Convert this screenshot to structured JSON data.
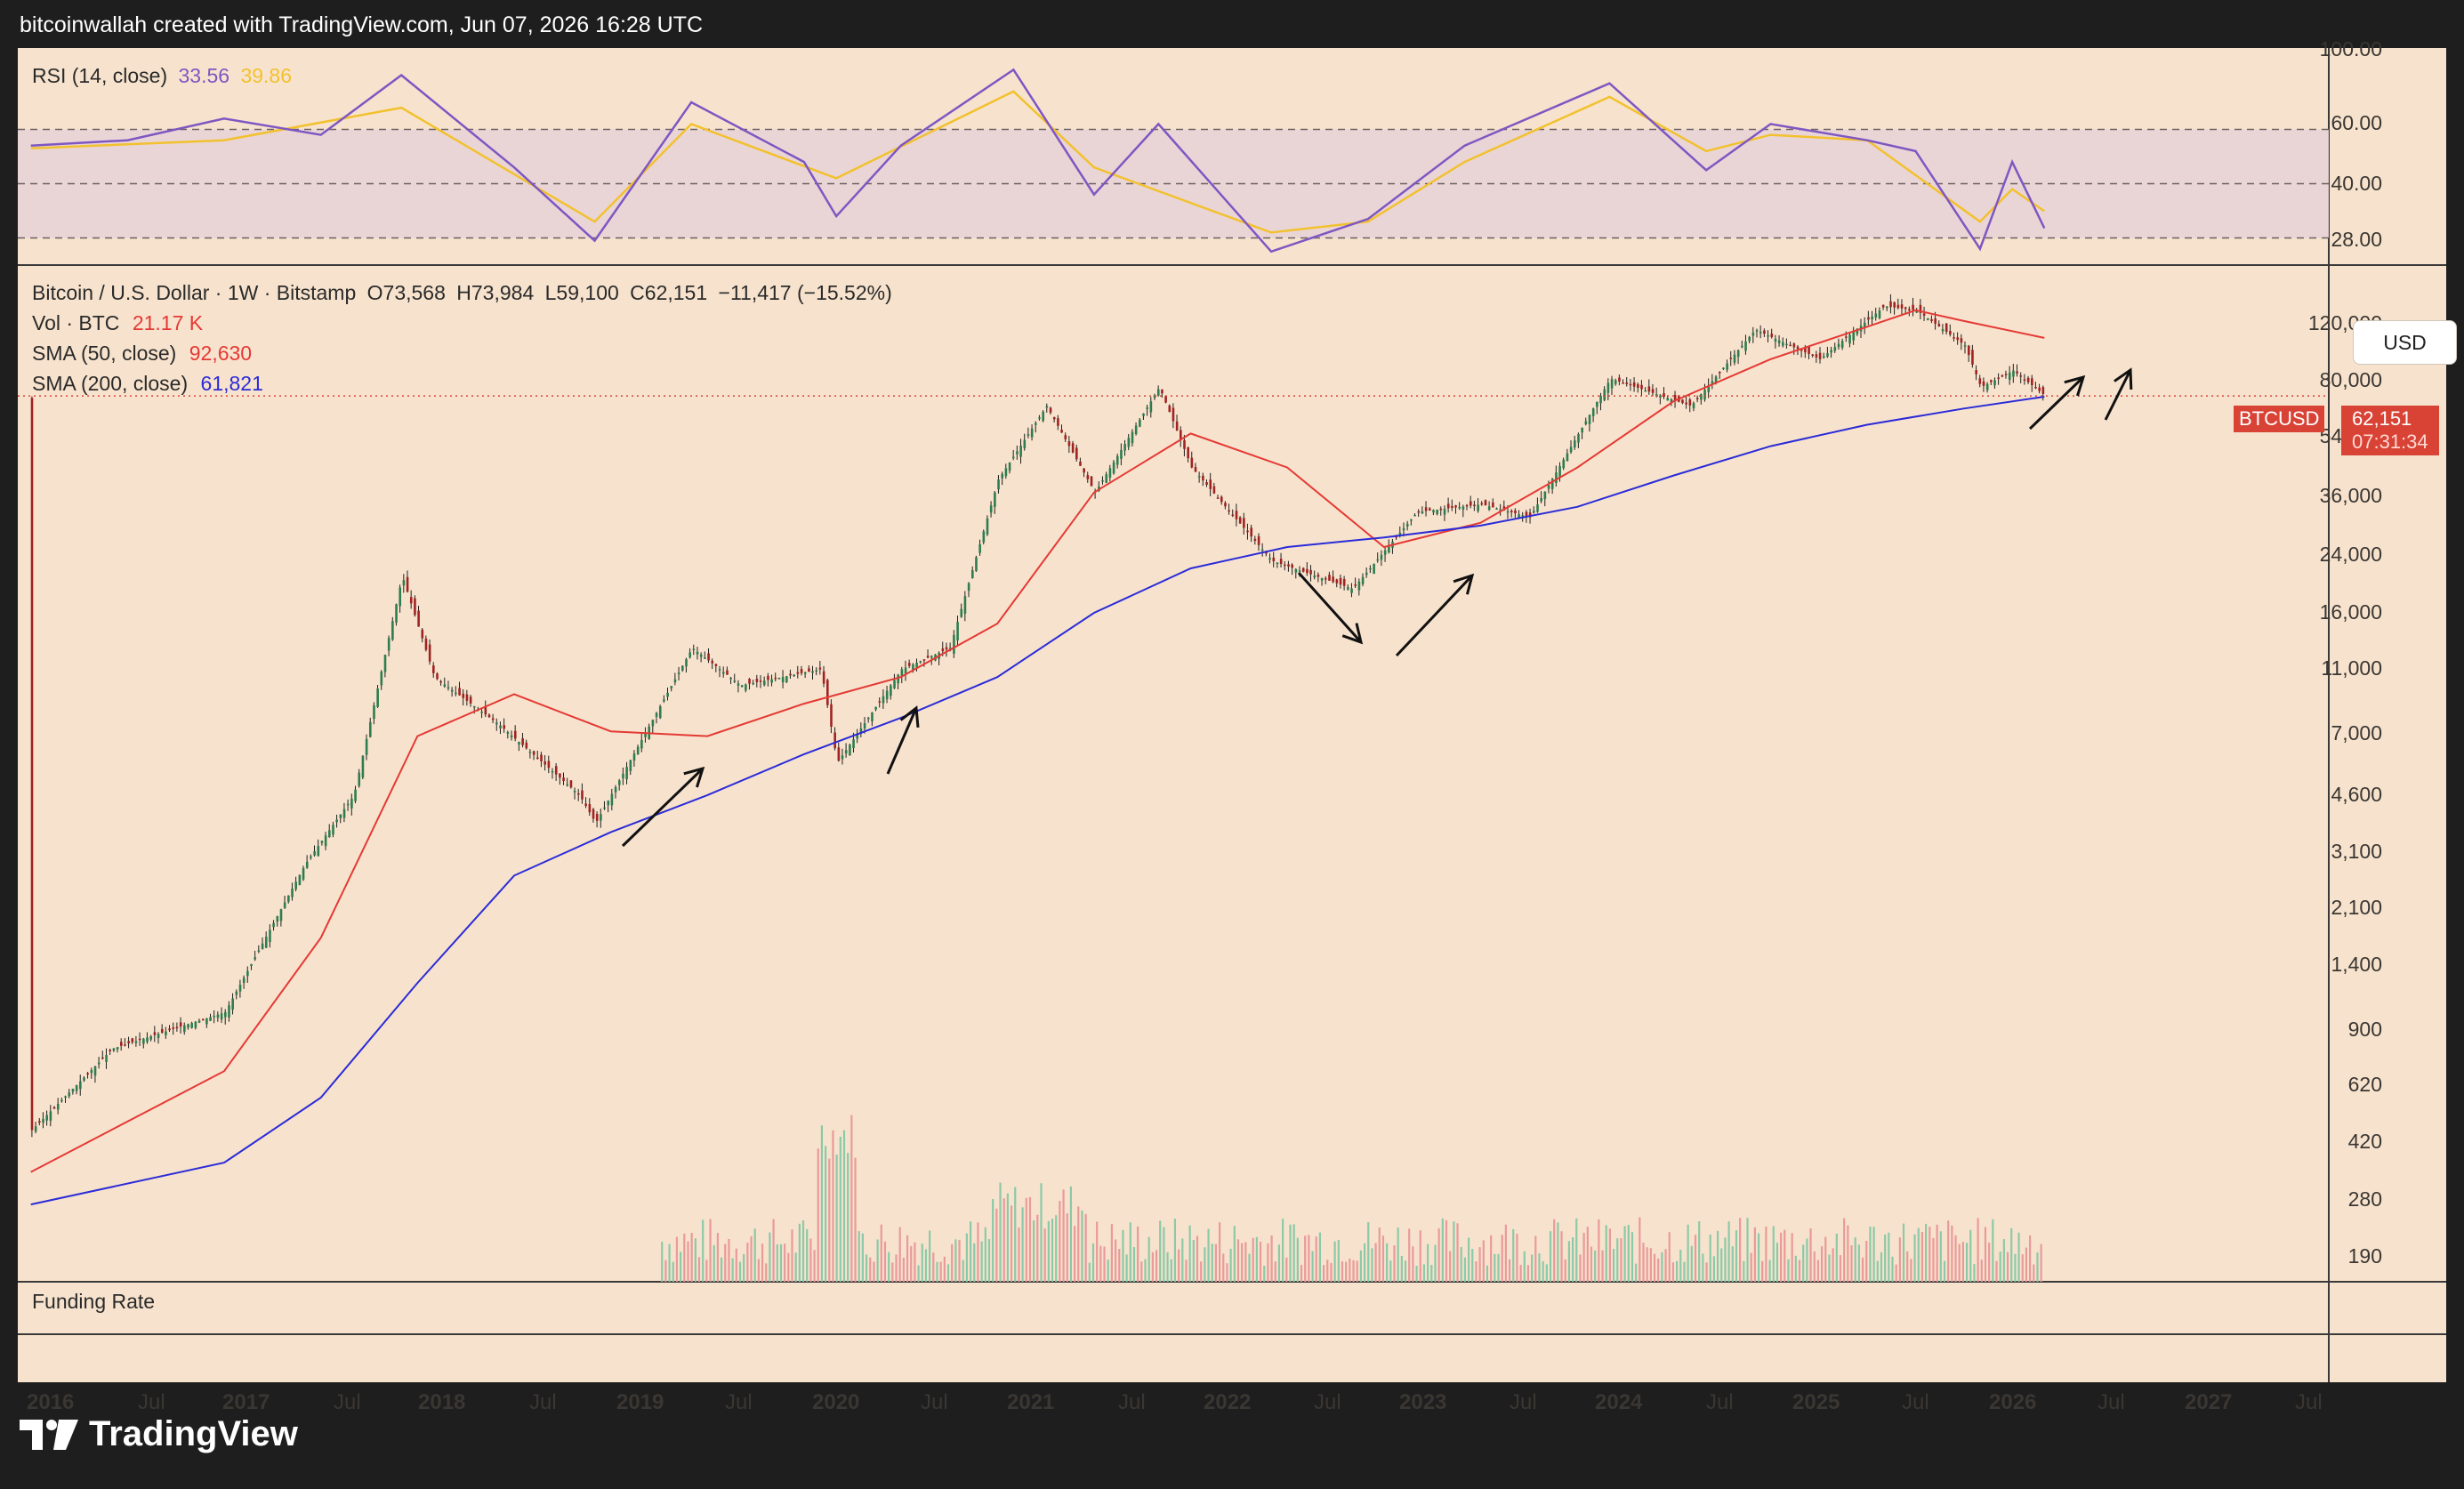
{
  "header": {
    "attribution": "bitcoinwallah created with TradingView.com, Jun 07, 2026 16:28 UTC"
  },
  "footer": {
    "brand": "TradingView"
  },
  "rsi_panel": {
    "title": "RSI (14, close)",
    "rsi_value": "33.56",
    "ma_value": "39.86",
    "axis_labels": [
      "100.00",
      "60.00",
      "40.00",
      "28.00"
    ]
  },
  "price_panel": {
    "symbol_line": "Bitcoin / U.S. Dollar · 1W · Bitstamp",
    "open": "O73,568",
    "high": "H73,984",
    "low": "L59,100",
    "close": "C62,151",
    "change": "−11,417 (−15.52%)",
    "vol_label": "Vol · BTC",
    "vol_value": "21.17 K",
    "sma50_label": "SMA (50, close)",
    "sma50_value": "92,630",
    "sma200_label": "SMA (200, close)",
    "sma200_value": "61,821",
    "currency_button": "USD",
    "price_tag": {
      "symbol": "BTCUSD",
      "price": "62,151",
      "countdown": "07:31:34"
    },
    "axis_labels": [
      "120,000",
      "80,000",
      "54,000",
      "36,000",
      "24,000",
      "16,000",
      "11,000",
      "7,000",
      "4,600",
      "3,100",
      "2,100",
      "1,400",
      "900",
      "620",
      "420",
      "280",
      "190"
    ]
  },
  "funding_panel": {
    "title": "Funding Rate"
  },
  "time_axis": {
    "labels": [
      "2016",
      "Jul",
      "2017",
      "Jul",
      "2018",
      "Jul",
      "2019",
      "Jul",
      "2020",
      "Jul",
      "2021",
      "Jul",
      "2022",
      "Jul",
      "2023",
      "Jul",
      "2024",
      "Jul",
      "2025",
      "Jul",
      "2026",
      "Jul",
      "2027",
      "Jul"
    ]
  },
  "colors": {
    "background": "#f7e3cd",
    "rsi_line": "#7e57c2",
    "rsi_ma": "#f2c12e",
    "sma50": "#e53935",
    "sma200": "#2b2bd8",
    "candle_up": "#2e7d4e",
    "candle_down": "#a02323",
    "price_tag": "#d84336"
  },
  "chart_data": [
    {
      "type": "line",
      "title": "RSI (14, close)",
      "ylim": [
        20,
        100
      ],
      "reference_lines": [
        70,
        50,
        30
      ],
      "series": [
        {
          "name": "RSI",
          "x": [
            "2016-01",
            "2016-07",
            "2017-01",
            "2017-07",
            "2017-12",
            "2018-07",
            "2018-12",
            "2019-06",
            "2020-01",
            "2020-03",
            "2020-07",
            "2021-02",
            "2021-07",
            "2021-11",
            "2022-06",
            "2022-12",
            "2023-06",
            "2024-03",
            "2024-09",
            "2025-01",
            "2025-07",
            "2025-10",
            "2026-02",
            "2026-04",
            "2026-06"
          ],
          "values": [
            64,
            66,
            74,
            68,
            90,
            56,
            29,
            80,
            58,
            38,
            64,
            92,
            46,
            72,
            25,
            37,
            64,
            87,
            55,
            72,
            66,
            62,
            26,
            58,
            33.56
          ]
        },
        {
          "name": "RSI MA",
          "x": [
            "2016-01",
            "2017-01",
            "2017-12",
            "2018-12",
            "2019-06",
            "2020-03",
            "2021-02",
            "2021-07",
            "2022-06",
            "2022-12",
            "2023-06",
            "2024-03",
            "2024-09",
            "2025-01",
            "2025-07",
            "2026-02",
            "2026-04",
            "2026-06"
          ],
          "values": [
            63,
            66,
            78,
            36,
            72,
            52,
            84,
            56,
            32,
            36,
            58,
            82,
            62,
            68,
            66,
            36,
            48,
            39.86
          ]
        }
      ]
    },
    {
      "type": "line",
      "title": "Bitcoin / U.S. Dollar · 1W · Bitstamp",
      "yscale": "log",
      "ylim": [
        150,
        150000
      ],
      "series": [
        {
          "name": "BTCUSD close",
          "x": [
            "2016-01",
            "2016-06",
            "2017-01",
            "2017-06",
            "2017-09",
            "2017-12",
            "2018-02",
            "2018-06",
            "2018-11",
            "2018-12",
            "2019-06",
            "2019-09",
            "2020-02",
            "2020-03",
            "2020-07",
            "2020-10",
            "2021-01",
            "2021-04",
            "2021-07",
            "2021-11",
            "2022-01",
            "2022-06",
            "2022-11",
            "2023-03",
            "2023-07",
            "2023-10",
            "2024-03",
            "2024-08",
            "2024-12",
            "2025-04",
            "2025-08",
            "2025-10",
            "2026-01",
            "2026-02",
            "2026-04",
            "2026-06"
          ],
          "values": [
            400,
            700,
            900,
            2500,
            4000,
            18000,
            9000,
            6500,
            4000,
            3300,
            11000,
            8500,
            9500,
            5000,
            9500,
            11000,
            35000,
            58000,
            32000,
            66000,
            38000,
            20000,
            16500,
            28000,
            29500,
            27000,
            70000,
            58000,
            98000,
            80000,
            115000,
            112000,
            88000,
            66000,
            74000,
            62151
          ]
        },
        {
          "name": "SMA (50, close)",
          "x": [
            "2016-01",
            "2017-01",
            "2017-07",
            "2018-01",
            "2018-07",
            "2019-01",
            "2019-07",
            "2020-01",
            "2020-07",
            "2021-01",
            "2021-07",
            "2022-01",
            "2022-07",
            "2023-01",
            "2023-07",
            "2024-01",
            "2024-07",
            "2025-01",
            "2025-07",
            "2025-10",
            "2026-01",
            "2026-06"
          ],
          "values": [
            300,
            600,
            1500,
            6000,
            8000,
            6200,
            6000,
            7500,
            9000,
            13000,
            32000,
            48000,
            38000,
            22000,
            26000,
            38000,
            60000,
            80000,
            100000,
            112000,
            104000,
            92630
          ]
        },
        {
          "name": "SMA (200, close)",
          "x": [
            "2016-01",
            "2017-01",
            "2017-07",
            "2018-01",
            "2018-07",
            "2019-01",
            "2019-07",
            "2020-01",
            "2020-07",
            "2021-01",
            "2021-07",
            "2022-01",
            "2022-07",
            "2023-01",
            "2023-07",
            "2024-01",
            "2024-07",
            "2025-01",
            "2025-07",
            "2026-01",
            "2026-06"
          ],
          "values": [
            240,
            320,
            500,
            1100,
            2300,
            3100,
            4000,
            5300,
            6800,
            9000,
            14000,
            19000,
            22000,
            23500,
            25500,
            29000,
            36000,
            44000,
            51000,
            57000,
            61821
          ]
        }
      ]
    }
  ]
}
